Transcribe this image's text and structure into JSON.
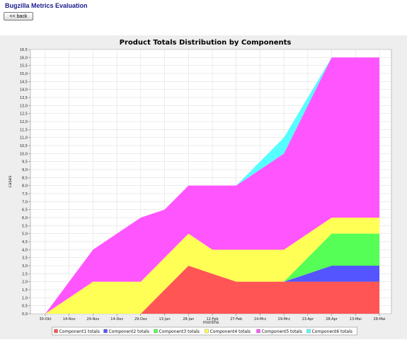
{
  "page": {
    "title": "Bugzilla Metrics Evaluation",
    "back_label": "<< back"
  },
  "colors": {
    "plot_background": "#ffffff",
    "outer_background": "#eeeeee",
    "gridline": "#d8d8d8"
  },
  "chart_data": {
    "type": "area",
    "stacked": true,
    "title": "Product Totals Distribution by Components",
    "xlabel": "months",
    "ylabel": "cases",
    "categories": [
      "30-Okt",
      "14-Nov",
      "29-Nov",
      "14-Dez",
      "29-Dez",
      "13-Jan",
      "28-Jan",
      "12-Feb",
      "27-Feb",
      "14-Mrz",
      "29-Mrz",
      "13-Apr",
      "28-Apr",
      "13-Mai",
      "28-Mai"
    ],
    "ylim": [
      0,
      16.5
    ],
    "ytick_step": 0.5,
    "grid": true,
    "legend_position": "bottom",
    "series": [
      {
        "name": "Component1 totals",
        "color": "#ff5555",
        "values": [
          0,
          0,
          0,
          0,
          0,
          1.5,
          3,
          2.5,
          2,
          2,
          2,
          2,
          2,
          2,
          2
        ]
      },
      {
        "name": "Component2 totals",
        "color": "#5555ff",
        "values": [
          0,
          0,
          0,
          0,
          0,
          0,
          0,
          0,
          0,
          0,
          0,
          0.5,
          1,
          1,
          1
        ]
      },
      {
        "name": "Component3 totals",
        "color": "#55ff55",
        "values": [
          0,
          0,
          0,
          0,
          0,
          0,
          0,
          0,
          0,
          0,
          0,
          1,
          2,
          2,
          2
        ]
      },
      {
        "name": "Component4 totals",
        "color": "#ffff55",
        "values": [
          0,
          1,
          2,
          2,
          2,
          2,
          2,
          1.5,
          2,
          2,
          2,
          1.5,
          1,
          1,
          1
        ]
      },
      {
        "name": "Component5 totals",
        "color": "#ff55ff",
        "values": [
          0,
          1,
          2,
          3,
          4,
          3,
          3,
          4,
          4,
          5,
          6,
          8,
          10,
          10,
          10
        ]
      },
      {
        "name": "Component6 totals",
        "color": "#55ffff",
        "values": [
          0,
          0,
          0,
          0,
          0,
          0,
          0,
          0,
          0,
          0.5,
          1,
          0.5,
          0,
          0,
          0
        ]
      }
    ]
  }
}
